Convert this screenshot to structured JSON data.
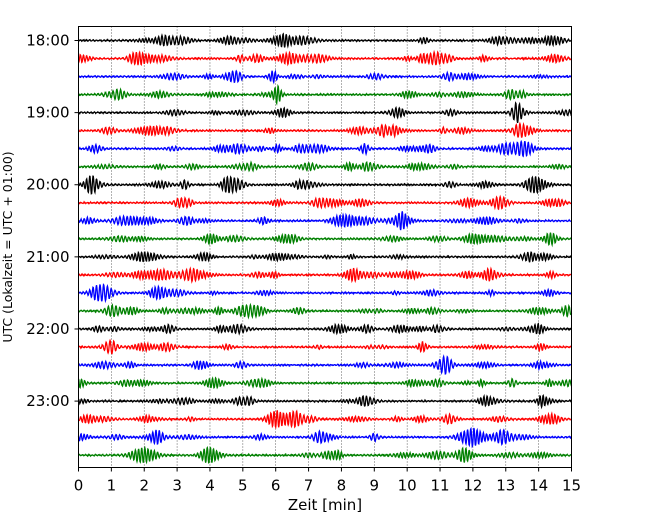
{
  "chart_data": {
    "type": "line",
    "title": "",
    "xlabel": "Zeit  [min]",
    "ylabel": "UTC (Lokalzeit = UTC + 01:00)",
    "xlim": [
      0,
      15
    ],
    "x_ticks": [
      0,
      1,
      2,
      3,
      4,
      5,
      6,
      7,
      8,
      9,
      10,
      11,
      12,
      13,
      14,
      15
    ],
    "x_tick_labels": [
      "0",
      "1",
      "2",
      "3",
      "4",
      "5",
      "6",
      "7",
      "8",
      "9",
      "10",
      "11",
      "12",
      "13",
      "14",
      "15"
    ],
    "y_tick_labels": [
      "18:00",
      "19:00",
      "20:00",
      "21:00",
      "22:00",
      "23:00"
    ],
    "y_tick_rows": [
      0,
      4,
      8,
      12,
      16,
      20
    ],
    "rows": 24,
    "row_minutes": 15,
    "start_time": "18:00",
    "grid": "vertical dotted",
    "colors": [
      "#000000",
      "#ff0000",
      "#0000ff",
      "#008000"
    ]
  }
}
